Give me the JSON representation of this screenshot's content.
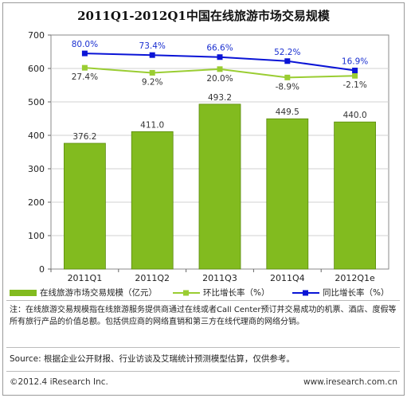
{
  "title": "2011Q1-2012Q1中国在线旅游市场交易规模",
  "chart_data": {
    "type": "bar",
    "categories": [
      "2011Q1",
      "2011Q2",
      "2011Q3",
      "2011Q4",
      "2012Q1e"
    ],
    "ylim": [
      0,
      700
    ],
    "yticks": [
      0,
      100,
      200,
      300,
      400,
      500,
      600,
      700
    ],
    "grid": true,
    "series": [
      {
        "name": "在线旅游市场交易规模（亿元）",
        "kind": "bar",
        "color": "#82bb1f",
        "values": [
          376.2,
          411.0,
          493.2,
          449.5,
          440.0
        ],
        "labels": [
          "376.2",
          "411.0",
          "493.2",
          "449.5",
          "440.0"
        ]
      },
      {
        "name": "环比增长率（%）",
        "kind": "line",
        "color": "#9acd32",
        "plot_values": [
          602,
          587,
          598,
          573,
          578
        ],
        "labels": [
          "27.4%",
          "9.2%",
          "20.0%",
          "-8.9%",
          "-2.1%"
        ]
      },
      {
        "name": "同比增长率（%）",
        "kind": "line",
        "color": "#0a14d6",
        "plot_values": [
          645,
          640,
          634,
          622,
          594
        ],
        "labels": [
          "80.0%",
          "73.4%",
          "66.6%",
          "52.2%",
          "16.9%"
        ]
      }
    ]
  },
  "note": "注：在线旅游交易规模指在线旅游服务提供商通过在线或者Call Center预订并交易成功的机票、酒店、度假等所有旅行产品的价值总额。包括供应商的网络直销和第三方在线代理商的网络分销。",
  "source": "Source: 根据企业公开财报、行业访谈及艾瑞统计预测模型估算，仅供参考。",
  "footer": {
    "copyright": "©2012.4 iResearch Inc.",
    "website": "www.iresearch.com.cn"
  }
}
